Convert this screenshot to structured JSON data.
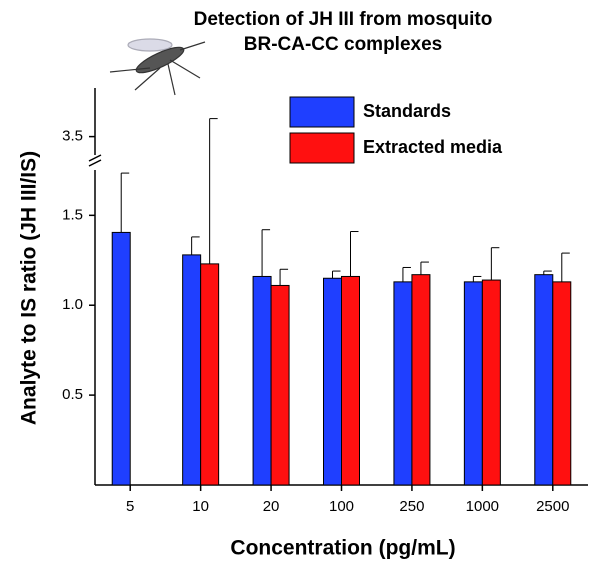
{
  "chart_data": {
    "type": "bar",
    "title": "Detection of JH III from mosquito",
    "subtitle": "BR-CA-CC complexes",
    "x_label": "Concentration (pg/mL)",
    "y_label": "Analyte to IS ratio (JH III/IS)",
    "categories": [
      "5",
      "10",
      "20",
      "100",
      "250",
      "1000",
      "2500"
    ],
    "series": [
      {
        "name": "Standards",
        "color": "#1f3fff",
        "values": [
          1.405,
          1.28,
          1.16,
          1.15,
          1.13,
          1.13,
          1.17
        ],
        "errors": [
          0.33,
          0.1,
          0.26,
          0.04,
          0.08,
          0.03,
          0.02
        ]
      },
      {
        "name": "Extracted media",
        "color": "#ff1010",
        "values": [
          null,
          1.23,
          1.11,
          1.16,
          1.17,
          1.14,
          1.13
        ],
        "errors": [
          null,
          2.37,
          0.09,
          0.25,
          0.07,
          0.18,
          0.16
        ]
      }
    ],
    "ylim": [
      0,
      3.77
    ],
    "axis_break": [
      1.78,
      3.37
    ],
    "yticks": [
      0.5,
      {
        "value": 1.0,
        "label": "1.0"
      },
      1.5,
      3.5
    ],
    "legend": "top-right"
  }
}
